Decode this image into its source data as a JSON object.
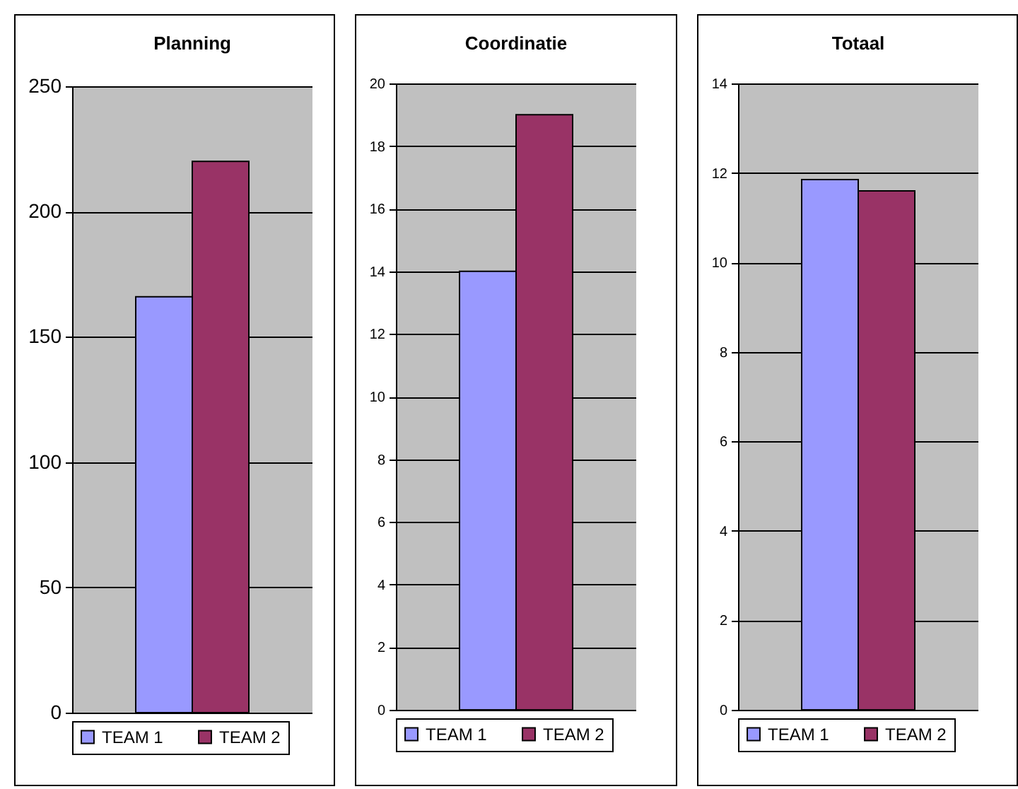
{
  "chart_data": [
    {
      "type": "bar",
      "title": "Planning",
      "categories": [
        null
      ],
      "series": [
        {
          "name": "TEAM 1",
          "color": "#9999ff",
          "values": [
            166
          ]
        },
        {
          "name": "TEAM 2",
          "color": "#993366",
          "values": [
            220
          ]
        }
      ],
      "ylim": [
        0,
        250
      ],
      "yticks": [
        0,
        50,
        100,
        150,
        200,
        250
      ],
      "grid": "y",
      "legend": "bottom",
      "tick_labels": "y"
    },
    {
      "type": "bar",
      "title": "Coordinatie",
      "categories": [
        null
      ],
      "series": [
        {
          "name": "TEAM 1",
          "color": "#9999ff",
          "values": [
            14
          ]
        },
        {
          "name": "TEAM 2",
          "color": "#993366",
          "values": [
            19
          ]
        }
      ],
      "ylim": [
        0,
        20
      ],
      "yticks": [
        0,
        2,
        4,
        6,
        8,
        10,
        12,
        14,
        16,
        18,
        20
      ],
      "grid": "y",
      "legend": "bottom",
      "tick_labels": "y"
    },
    {
      "type": "bar",
      "title": "Totaal",
      "categories": [
        null
      ],
      "series": [
        {
          "name": "TEAM 1",
          "color": "#9999ff",
          "values": [
            11.85
          ]
        },
        {
          "name": "TEAM 2",
          "color": "#993366",
          "values": [
            11.6
          ]
        }
      ],
      "ylim": [
        0,
        14
      ],
      "yticks": [
        0,
        2,
        4,
        6,
        8,
        10,
        12,
        14
      ],
      "grid": "y",
      "legend": "bottom",
      "tick_labels": "y"
    }
  ]
}
